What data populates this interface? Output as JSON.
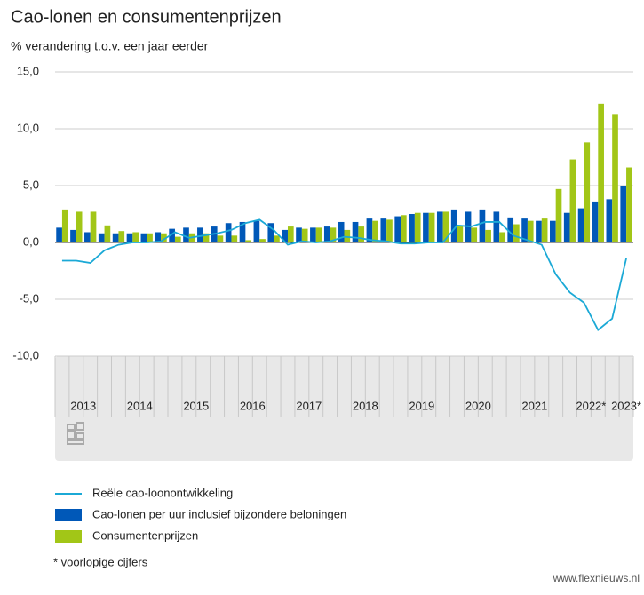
{
  "chart_data": {
    "type": "bar-line",
    "title": "Cao-lonen en consumentenprijzen",
    "subtitle": "% verandering t.o.v. een jaar eerder",
    "categories": [
      null,
      "2013",
      null,
      null,
      null,
      "2014",
      null,
      null,
      null,
      "2015",
      null,
      null,
      null,
      "2016",
      null,
      null,
      null,
      "2017",
      null,
      null,
      null,
      "2018",
      null,
      null,
      null,
      "2019",
      null,
      null,
      null,
      "2020",
      null,
      null,
      null,
      "2021",
      null,
      null,
      null,
      "2022*",
      null,
      null,
      "2023*"
    ],
    "series": [
      {
        "name": "Reële cao-loonontwikkeling",
        "kind": "line",
        "color": "#1ba9d6",
        "values": [
          -1.6,
          -1.6,
          -1.8,
          -0.7,
          -0.2,
          0,
          0,
          0.1,
          0.9,
          0.4,
          0.6,
          0.8,
          1.1,
          1.7,
          2.0,
          1.1,
          -0.2,
          0.1,
          0,
          0.1,
          0.5,
          0.4,
          0.2,
          0.1,
          -0.1,
          -0.1,
          0,
          0,
          1.5,
          1.4,
          1.8,
          1.8,
          0.6,
          0.2,
          -0.2,
          -2.8,
          -4.4,
          -5.3,
          -7.7,
          -6.7,
          -1.4
        ]
      },
      {
        "name": "Cao-lonen per uur inclusief bijzondere beloningen",
        "kind": "bar",
        "color": "#0058b8",
        "values": [
          1.3,
          1.1,
          0.9,
          0.8,
          0.8,
          0.8,
          0.8,
          0.9,
          1.2,
          1.3,
          1.3,
          1.4,
          1.7,
          1.8,
          1.9,
          1.7,
          1.1,
          1.3,
          1.3,
          1.4,
          1.8,
          1.8,
          2.1,
          2.1,
          2.3,
          2.5,
          2.6,
          2.7,
          2.9,
          2.7,
          2.9,
          2.7,
          2.2,
          2.1,
          1.9,
          1.9,
          2.6,
          3.0,
          3.6,
          3.8,
          5.0
        ]
      },
      {
        "name": "Consumentenprijzen",
        "kind": "bar",
        "color": "#a2c617",
        "values": [
          2.9,
          2.7,
          2.7,
          1.5,
          1.0,
          0.9,
          0.8,
          0.8,
          0.5,
          0.8,
          0.8,
          0.6,
          0.6,
          0.2,
          0.3,
          0.6,
          1.4,
          1.2,
          1.3,
          1.3,
          1.1,
          1.4,
          1.9,
          2.0,
          2.4,
          2.6,
          2.6,
          2.7,
          1.4,
          1.3,
          1.1,
          0.9,
          1.6,
          1.9,
          2.1,
          4.7,
          7.3,
          8.8,
          12.2,
          11.3,
          6.6
        ]
      }
    ],
    "ylim": [
      -10,
      15
    ],
    "yticks": [
      {
        "value": -10,
        "label": "-10,0"
      },
      {
        "value": -5,
        "label": "-5,0"
      },
      {
        "value": 0,
        "label": "0,0"
      },
      {
        "value": 5,
        "label": "5,0"
      },
      {
        "value": 10,
        "label": "10,0"
      },
      {
        "value": 15,
        "label": "15,0"
      }
    ],
    "grid": true,
    "footnote": "* voorlopige cijfers",
    "watermark": "www.flexnieuws.nl"
  }
}
